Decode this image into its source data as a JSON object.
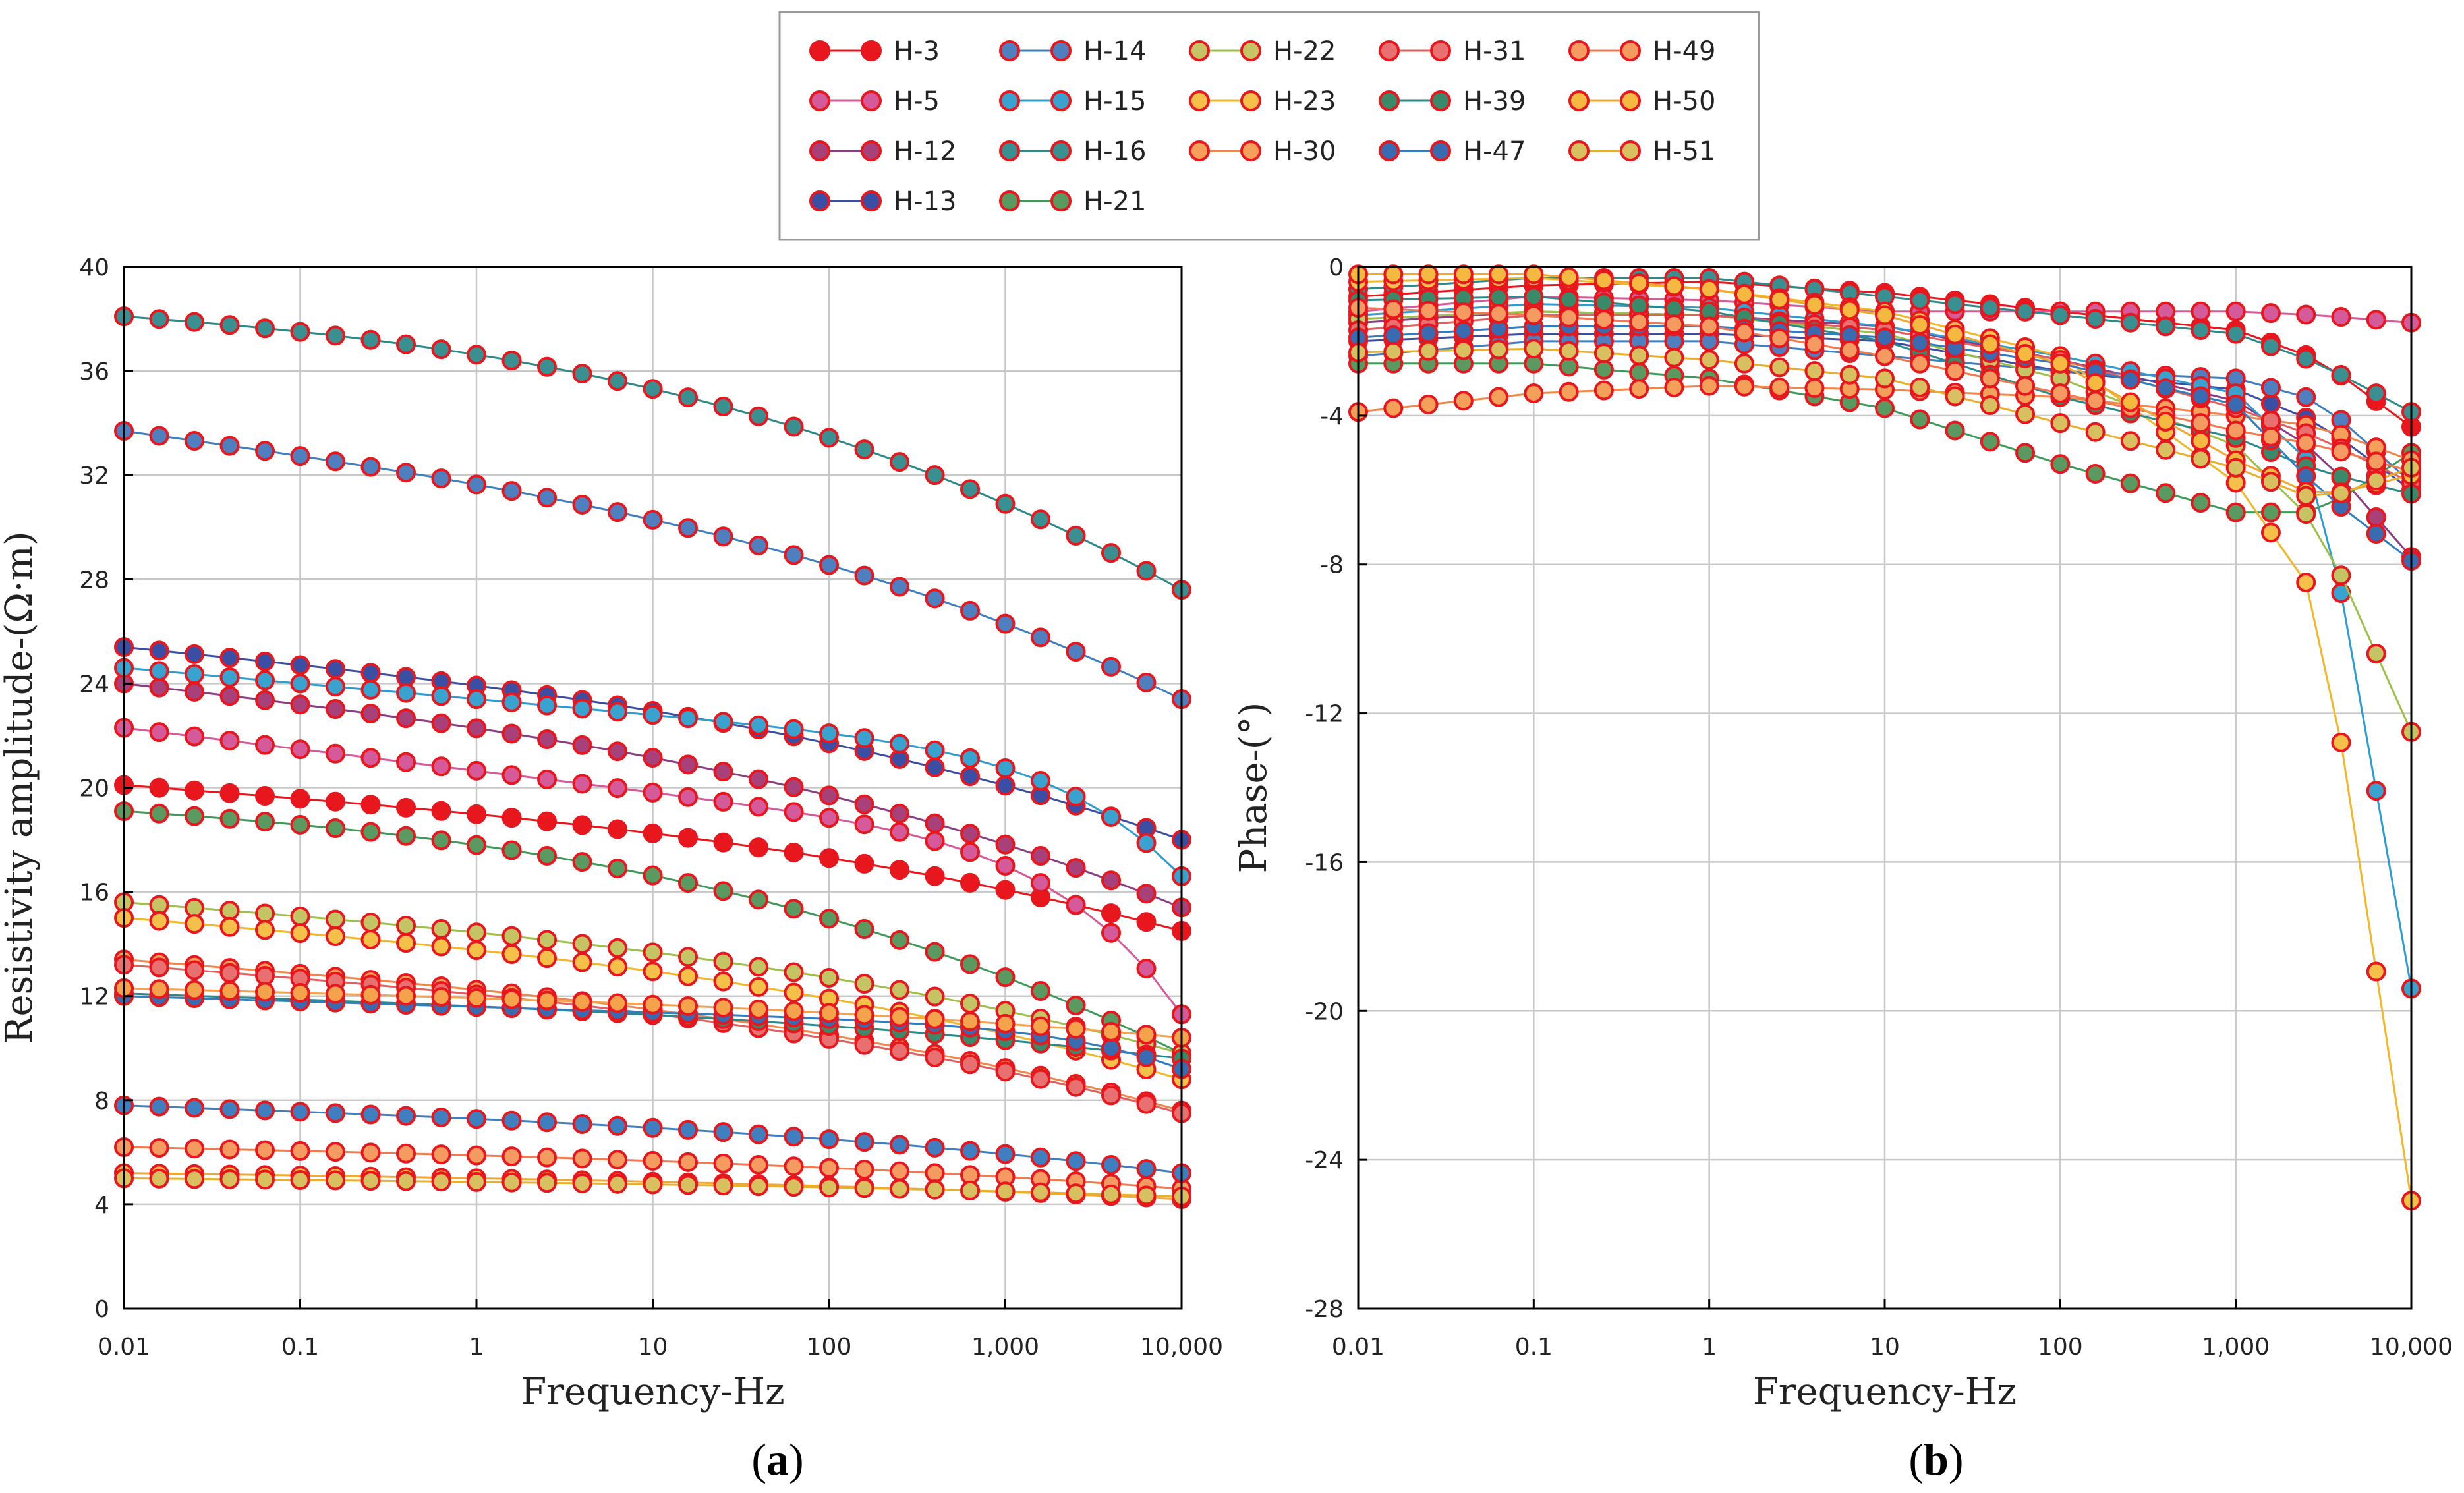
{
  "chart_data": [
    {
      "type": "line",
      "panel_label": "a",
      "xlabel": "Frequency-Hz",
      "ylabel": "Resistivity amplitude-(Ω·m)",
      "xscale": "log",
      "xlim": [
        0.01,
        10000
      ],
      "ylim": [
        0,
        40
      ],
      "x_ticks": [
        0.01,
        0.1,
        1,
        10,
        100,
        1000,
        10000
      ],
      "x_tick_labels": [
        "0.01",
        "0.1",
        "1",
        "10",
        "100",
        "1,000",
        "10,000"
      ],
      "y_ticks": [
        0,
        4,
        8,
        12,
        16,
        20,
        24,
        28,
        32,
        36,
        40
      ],
      "y_tick_labels": [
        "0",
        "4",
        "8",
        "12",
        "16",
        "20",
        "24",
        "28",
        "32",
        "36",
        "40"
      ],
      "grid": true,
      "series": [
        {
          "name": "H-3",
          "start": 20.1,
          "end": 14.5,
          "shape": "mid"
        },
        {
          "name": "H-5",
          "start": 22.3,
          "end": 11.3,
          "shape": "late"
        },
        {
          "name": "H-12",
          "start": 24.0,
          "end": 15.4,
          "shape": "mid"
        },
        {
          "name": "H-13",
          "start": 25.4,
          "end": 18.0,
          "shape": "mid"
        },
        {
          "name": "H-14",
          "start": 33.7,
          "end": 23.4,
          "shape": "mid"
        },
        {
          "name": "H-15",
          "start": 24.6,
          "end": 16.6,
          "shape": "late"
        },
        {
          "name": "H-16",
          "start": 38.1,
          "end": 27.6,
          "shape": "early"
        },
        {
          "name": "H-21",
          "start": 19.1,
          "end": 9.8,
          "shape": "early"
        },
        {
          "name": "H-22",
          "start": 15.6,
          "end": 9.8,
          "shape": "mid"
        },
        {
          "name": "H-23",
          "start": 15.0,
          "end": 8.8,
          "shape": "mid"
        },
        {
          "name": "H-30",
          "start": 13.4,
          "end": 7.6,
          "shape": "mid"
        },
        {
          "name": "H-31",
          "start": 13.2,
          "end": 7.5,
          "shape": "mid"
        },
        {
          "name": "H-39",
          "start": 12.1,
          "end": 9.6,
          "shape": "mid"
        },
        {
          "name": "H-47",
          "start": 12.0,
          "end": 9.2,
          "shape": "late"
        },
        {
          "name": "H-49",
          "start": 6.2,
          "end": 4.6,
          "shape": "mid"
        },
        {
          "name": "H-50",
          "start": 5.2,
          "end": 4.2,
          "shape": "mid"
        },
        {
          "name": "H-51",
          "start": 5.0,
          "end": 4.3,
          "shape": "mid"
        },
        {
          "name": "",
          "start": 7.8,
          "end": 5.2,
          "shape": "mid",
          "color": "#3f7fc0"
        },
        {
          "name": "",
          "start": 12.3,
          "end": 10.4,
          "shape": "mid",
          "color": "#f5a24c"
        }
      ]
    },
    {
      "type": "line",
      "panel_label": "b",
      "xlabel": "Frequency-Hz",
      "ylabel": "Phase-(°)",
      "xscale": "log",
      "xlim": [
        0.01,
        10000
      ],
      "ylim": [
        -28,
        0
      ],
      "x_ticks": [
        0.01,
        0.1,
        1,
        10,
        100,
        1000,
        10000
      ],
      "x_tick_labels": [
        "0.01",
        "0.1",
        "1",
        "10",
        "100",
        "1,000",
        "10,000"
      ],
      "y_ticks": [
        0,
        -4,
        -8,
        -12,
        -16,
        -20,
        -24,
        -28
      ],
      "y_tick_labels": [
        "0",
        "-4",
        "-8",
        "-12",
        "-16",
        "-20",
        "-24",
        "-28"
      ],
      "grid": true,
      "series": [
        {
          "name": "H-3",
          "points": [
            [
              0.01,
              -0.8
            ],
            [
              0.1,
              -0.5
            ],
            [
              1,
              -0.4
            ],
            [
              10,
              -0.7
            ],
            [
              100,
              -1.2
            ],
            [
              1000,
              -1.7
            ],
            [
              3000,
              -2.5
            ],
            [
              10000,
              -4.3
            ]
          ]
        },
        {
          "name": "H-5",
          "points": [
            [
              0.01,
              -1.2
            ],
            [
              0.1,
              -0.8
            ],
            [
              1,
              -0.9
            ],
            [
              10,
              -1.2
            ],
            [
              100,
              -1.2
            ],
            [
              1000,
              -1.2
            ],
            [
              3000,
              -1.3
            ],
            [
              10000,
              -1.5
            ]
          ]
        },
        {
          "name": "H-12",
          "points": [
            [
              0.01,
              -1.5
            ],
            [
              0.1,
              -1.2
            ],
            [
              1,
              -1.3
            ],
            [
              10,
              -1.6
            ],
            [
              100,
              -2.5
            ],
            [
              1000,
              -3.6
            ],
            [
              3000,
              -5.0
            ],
            [
              10000,
              -7.8
            ]
          ]
        },
        {
          "name": "H-13",
          "points": [
            [
              0.01,
              -2.0
            ],
            [
              0.1,
              -1.8
            ],
            [
              1,
              -1.8
            ],
            [
              10,
              -2.0
            ],
            [
              100,
              -2.8
            ],
            [
              1000,
              -3.3
            ],
            [
              3000,
              -4.2
            ],
            [
              10000,
              -6.0
            ]
          ]
        },
        {
          "name": "H-14",
          "points": [
            [
              0.01,
              -2.4
            ],
            [
              0.1,
              -2.0
            ],
            [
              1,
              -2.0
            ],
            [
              10,
              -2.4
            ],
            [
              100,
              -2.8
            ],
            [
              1000,
              -3.0
            ],
            [
              3000,
              -3.6
            ],
            [
              10000,
              -5.8
            ]
          ]
        },
        {
          "name": "H-15",
          "points": [
            [
              0.01,
              -1.3
            ],
            [
              0.1,
              -1.0
            ],
            [
              1,
              -1.1
            ],
            [
              10,
              -1.6
            ],
            [
              100,
              -2.4
            ],
            [
              1000,
              -3.4
            ],
            [
              3000,
              -5.5
            ],
            [
              10000,
              -19.4
            ]
          ]
        },
        {
          "name": "H-16",
          "points": [
            [
              0.01,
              -0.6
            ],
            [
              0.1,
              -0.3
            ],
            [
              1,
              -0.3
            ],
            [
              10,
              -0.8
            ],
            [
              100,
              -1.3
            ],
            [
              1000,
              -1.8
            ],
            [
              3000,
              -2.6
            ],
            [
              10000,
              -3.9
            ]
          ]
        },
        {
          "name": "H-21",
          "points": [
            [
              0.01,
              -2.6
            ],
            [
              0.1,
              -2.6
            ],
            [
              1,
              -3.0
            ],
            [
              10,
              -3.8
            ],
            [
              100,
              -5.3
            ],
            [
              1000,
              -6.6
            ],
            [
              3000,
              -6.6
            ],
            [
              10000,
              -5.0
            ]
          ]
        },
        {
          "name": "H-22",
          "points": [
            [
              0.01,
              -1.4
            ],
            [
              0.1,
              -1.2
            ],
            [
              1,
              -1.3
            ],
            [
              10,
              -1.8
            ],
            [
              100,
              -3.0
            ],
            [
              1000,
              -4.8
            ],
            [
              3000,
              -7.0
            ],
            [
              10000,
              -12.5
            ]
          ]
        },
        {
          "name": "H-23",
          "points": [
            [
              0.01,
              -0.4
            ],
            [
              0.1,
              -0.3
            ],
            [
              1,
              -0.6
            ],
            [
              10,
              -1.2
            ],
            [
              100,
              -2.4
            ],
            [
              1000,
              -5.8
            ],
            [
              3000,
              -9.0
            ],
            [
              10000,
              -25.1
            ]
          ]
        },
        {
          "name": "H-30",
          "points": [
            [
              0.01,
              -3.9
            ],
            [
              0.1,
              -3.4
            ],
            [
              1,
              -3.2
            ],
            [
              10,
              -3.3
            ],
            [
              100,
              -3.5
            ],
            [
              1000,
              -4.0
            ],
            [
              3000,
              -4.3
            ],
            [
              10000,
              -5.2
            ]
          ]
        },
        {
          "name": "H-31",
          "points": [
            [
              0.01,
              -1.7
            ],
            [
              0.1,
              -1.3
            ],
            [
              1,
              -1.3
            ],
            [
              10,
              -1.7
            ],
            [
              100,
              -2.5
            ],
            [
              1000,
              -3.8
            ],
            [
              3000,
              -4.6
            ],
            [
              10000,
              -5.8
            ]
          ]
        },
        {
          "name": "H-39",
          "points": [
            [
              0.01,
              -0.9
            ],
            [
              0.1,
              -0.8
            ],
            [
              1,
              -1.2
            ],
            [
              10,
              -2.0
            ],
            [
              100,
              -3.5
            ],
            [
              1000,
              -4.6
            ],
            [
              3000,
              -5.5
            ],
            [
              10000,
              -6.1
            ]
          ]
        },
        {
          "name": "H-47",
          "points": [
            [
              0.01,
              -1.9
            ],
            [
              0.1,
              -1.6
            ],
            [
              1,
              -1.6
            ],
            [
              10,
              -1.9
            ],
            [
              100,
              -2.6
            ],
            [
              1000,
              -3.7
            ],
            [
              3000,
              -6.0
            ],
            [
              10000,
              -7.9
            ]
          ]
        },
        {
          "name": "H-49",
          "points": [
            [
              0.01,
              -1.1
            ],
            [
              0.1,
              -1.3
            ],
            [
              1,
              -1.6
            ],
            [
              10,
              -2.4
            ],
            [
              100,
              -3.4
            ],
            [
              1000,
              -4.4
            ],
            [
              3000,
              -4.8
            ],
            [
              10000,
              -5.5
            ]
          ]
        },
        {
          "name": "H-50",
          "points": [
            [
              0.01,
              -0.2
            ],
            [
              0.1,
              -0.2
            ],
            [
              1,
              -0.6
            ],
            [
              10,
              -1.3
            ],
            [
              100,
              -2.6
            ],
            [
              1000,
              -5.2
            ],
            [
              3000,
              -6.2
            ],
            [
              10000,
              -5.6
            ]
          ]
        },
        {
          "name": "H-51",
          "points": [
            [
              0.01,
              -2.3
            ],
            [
              0.1,
              -2.2
            ],
            [
              1,
              -2.5
            ],
            [
              10,
              -3.0
            ],
            [
              100,
              -4.2
            ],
            [
              1000,
              -5.4
            ],
            [
              3000,
              -6.3
            ],
            [
              10000,
              -5.4
            ]
          ]
        }
      ]
    }
  ],
  "legend": {
    "items": [
      {
        "name": "H-3",
        "line": "#e8171e",
        "fill": "#e8171e"
      },
      {
        "name": "H-5",
        "line": "#d45a9a",
        "fill": "#d45a9a"
      },
      {
        "name": "H-12",
        "line": "#8a3c84",
        "fill": "#a8407a"
      },
      {
        "name": "H-13",
        "line": "#3a4fa3",
        "fill": "#3a4fa3"
      },
      {
        "name": "H-14",
        "line": "#3f7fc0",
        "fill": "#4f7fbf"
      },
      {
        "name": "H-15",
        "line": "#2f9ccf",
        "fill": "#3aa2cf"
      },
      {
        "name": "H-16",
        "line": "#2e8a8a",
        "fill": "#3a9090"
      },
      {
        "name": "H-21",
        "line": "#3f9a5a",
        "fill": "#5a9a60"
      },
      {
        "name": "H-22",
        "line": "#9cc04a",
        "fill": "#c4c464"
      },
      {
        "name": "H-23",
        "line": "#f0b72a",
        "fill": "#f5c04a"
      },
      {
        "name": "H-30",
        "line": "#f0864a",
        "fill": "#f5a05a"
      },
      {
        "name": "H-31",
        "line": "#e06060",
        "fill": "#e87070"
      },
      {
        "name": "H-39",
        "line": "#2a8a8a",
        "fill": "#3a8a6a"
      },
      {
        "name": "H-47",
        "line": "#2f7fc0",
        "fill": "#3a6ab0"
      },
      {
        "name": "H-49",
        "line": "#f07a50",
        "fill": "#f59a60"
      },
      {
        "name": "H-50",
        "line": "#f0a830",
        "fill": "#f5b840"
      },
      {
        "name": "H-51",
        "line": "#e8b02a",
        "fill": "#d8c060"
      }
    ],
    "marker_outline": "#e8171e"
  },
  "panels": [
    "a",
    "b"
  ]
}
